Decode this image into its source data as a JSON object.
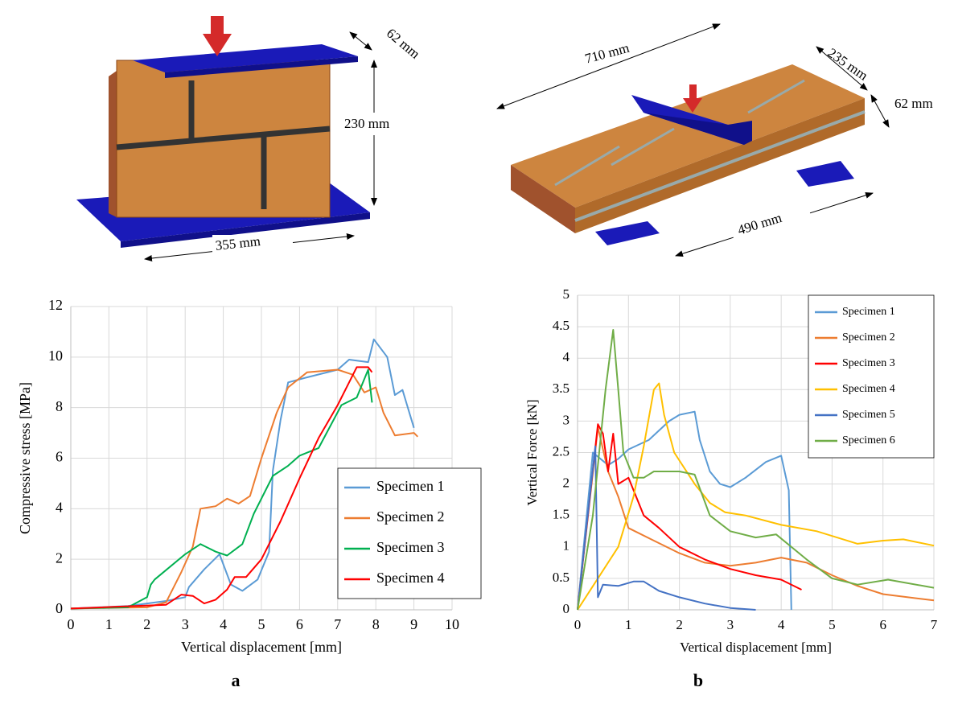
{
  "chart_data": [
    {
      "type": "line",
      "x_label": "Vertical displacement  [mm]",
      "y_label": "Compressive  stress [MPa]",
      "xlim": [
        0,
        10
      ],
      "xticks": [
        0,
        1,
        2,
        3,
        4,
        5,
        6,
        7,
        8,
        9,
        10
      ],
      "ylim": [
        0,
        12
      ],
      "yticks": [
        0,
        2,
        4,
        6,
        8,
        10,
        12
      ],
      "grid": true,
      "legend": "lower right",
      "series": [
        {
          "name": "Specimen 1",
          "color": "#5b9bd5",
          "x": [
            0,
            1.5,
            2.5,
            3,
            3.1,
            3.5,
            3.9,
            4.2,
            4.5,
            4.9,
            5.2,
            5.3,
            5.5,
            5.7,
            6.2,
            7,
            7.3,
            7.8,
            7.95,
            8.3,
            8.5,
            8.7,
            8.8,
            9.0
          ],
          "values": [
            0.05,
            0.15,
            0.35,
            0.5,
            0.9,
            1.6,
            2.2,
            1.0,
            0.75,
            1.2,
            2.3,
            5.5,
            7.5,
            9.0,
            9.2,
            9.5,
            9.9,
            9.8,
            10.7,
            10,
            8.5,
            8.7,
            8.2,
            7.2
          ]
        },
        {
          "name": "Specimen 2",
          "color": "#ed7d31",
          "x": [
            0,
            2,
            2.5,
            2.9,
            3.2,
            3.4,
            3.8,
            4.1,
            4.4,
            4.7,
            5,
            5.4,
            5.7,
            6.2,
            7.0,
            7.4,
            7.7,
            8.0,
            8.2,
            8.5,
            9.0,
            9.1
          ],
          "values": [
            0.05,
            0.1,
            0.3,
            1.5,
            2.5,
            4.0,
            4.1,
            4.4,
            4.2,
            4.5,
            6,
            7.8,
            8.8,
            9.4,
            9.5,
            9.3,
            8.6,
            8.8,
            7.8,
            6.9,
            7.0,
            6.85
          ]
        },
        {
          "name": "Specimen 3",
          "color": "#00b050",
          "x": [
            0,
            1.5,
            2.0,
            2.1,
            2.2,
            3.0,
            3.4,
            3.8,
            4.1,
            4.5,
            4.8,
            5.3,
            5.7,
            6.0,
            6.5,
            7.1,
            7.5,
            7.8,
            7.9
          ],
          "values": [
            0.05,
            0.1,
            0.5,
            1.0,
            1.2,
            2.2,
            2.6,
            2.3,
            2.15,
            2.6,
            3.8,
            5.3,
            5.7,
            6.1,
            6.4,
            8.1,
            8.4,
            9.5,
            8.2
          ]
        },
        {
          "name": "Specimen 4",
          "color": "#ff0000",
          "x": [
            0,
            2.5,
            2.9,
            3.2,
            3.5,
            3.8,
            4.1,
            4.3,
            4.6,
            5,
            5.5,
            6.0,
            6.5,
            7.0,
            7.3,
            7.5,
            7.8,
            7.9
          ],
          "values": [
            0.05,
            0.2,
            0.6,
            0.55,
            0.25,
            0.4,
            0.8,
            1.3,
            1.3,
            2,
            3.5,
            5.2,
            6.8,
            8.1,
            9.0,
            9.6,
            9.6,
            9.4
          ]
        }
      ]
    },
    {
      "type": "line",
      "x_label": "Vertical displacement  [mm]",
      "y_label": "Vertical Force [kN]",
      "xlim": [
        0,
        7
      ],
      "xticks": [
        0,
        1,
        2,
        3,
        4,
        5,
        6,
        7
      ],
      "ylim": [
        0,
        5
      ],
      "yticks": [
        0,
        0.5,
        1,
        1.5,
        2,
        2.5,
        3,
        3.5,
        4,
        4.5,
        5
      ],
      "grid": true,
      "legend": "upper right",
      "series": [
        {
          "name": "Specimen 1",
          "color": "#5b9bd5",
          "x": [
            0,
            0.3,
            0.45,
            0.6,
            0.8,
            1,
            1.4,
            1.8,
            2.0,
            2.3,
            2.4,
            2.6,
            2.8,
            3.0,
            3.3,
            3.7,
            4.0,
            4.15,
            4.2
          ],
          "values": [
            0,
            2.5,
            2.4,
            2.3,
            2.4,
            2.55,
            2.7,
            3.0,
            3.1,
            3.15,
            2.7,
            2.2,
            2.0,
            1.95,
            2.1,
            2.35,
            2.45,
            1.9,
            0
          ]
        },
        {
          "name": "Specimen 2",
          "color": "#ed7d31",
          "x": [
            0,
            0.4,
            0.6,
            0.8,
            1.0,
            1.5,
            2,
            2.5,
            3,
            3.5,
            4,
            4.5,
            5,
            5.5,
            6,
            7
          ],
          "values": [
            0,
            2.9,
            2.2,
            1.8,
            1.3,
            1.1,
            0.9,
            0.75,
            0.7,
            0.75,
            0.83,
            0.75,
            0.55,
            0.38,
            0.25,
            0.15
          ]
        },
        {
          "name": "Specimen 3",
          "color": "#ff0000",
          "x": [
            0,
            0.4,
            0.5,
            0.6,
            0.7,
            0.8,
            1,
            1.3,
            1.6,
            2,
            2.5,
            3,
            3.5,
            4,
            4.4
          ],
          "values": [
            0,
            2.95,
            2.8,
            2.2,
            2.8,
            2.0,
            2.1,
            1.5,
            1.3,
            1.0,
            0.8,
            0.65,
            0.55,
            0.48,
            0.32
          ]
        },
        {
          "name": "Specimen 4",
          "color": "#ffc000",
          "x": [
            0,
            0.4,
            0.8,
            1.1,
            1.3,
            1.5,
            1.6,
            1.7,
            1.9,
            2.3,
            2.6,
            2.9,
            3.3,
            4,
            4.7,
            5.5,
            6,
            6.4,
            7
          ],
          "values": [
            0,
            0.5,
            1.0,
            1.8,
            2.6,
            3.5,
            3.6,
            3.1,
            2.5,
            2.0,
            1.7,
            1.55,
            1.5,
            1.35,
            1.25,
            1.05,
            1.1,
            1.12,
            1.02
          ]
        },
        {
          "name": "Specimen 5",
          "color": "#4472c4",
          "x": [
            0,
            0.2,
            0.35,
            0.4,
            0.5,
            0.8,
            1.1,
            1.3,
            1.6,
            2,
            2.5,
            3,
            3.5
          ],
          "values": [
            0,
            1.5,
            2.6,
            0.2,
            0.4,
            0.38,
            0.45,
            0.45,
            0.3,
            0.2,
            0.1,
            0.03,
            0
          ]
        },
        {
          "name": "Specimen 6",
          "color": "#70ad47",
          "x": [
            0,
            0.3,
            0.55,
            0.7,
            0.8,
            0.9,
            1.1,
            1.3,
            1.5,
            2.0,
            2.3,
            2.6,
            3.0,
            3.5,
            3.9,
            4.5,
            5,
            5.5,
            6.1,
            7
          ],
          "values": [
            0,
            1.5,
            3.5,
            4.45,
            3.5,
            2.5,
            2.1,
            2.1,
            2.2,
            2.2,
            2.15,
            1.5,
            1.25,
            1.15,
            1.2,
            0.8,
            0.5,
            0.4,
            0.48,
            0.35
          ]
        }
      ]
    }
  ],
  "diagrams": [
    {
      "labels": [
        "62 mm",
        "230 mm",
        "355 mm"
      ]
    },
    {
      "labels": [
        "710 mm",
        "235 mm",
        "62 mm",
        "490 mm"
      ]
    }
  ],
  "panel_labels": [
    "a",
    "b"
  ]
}
